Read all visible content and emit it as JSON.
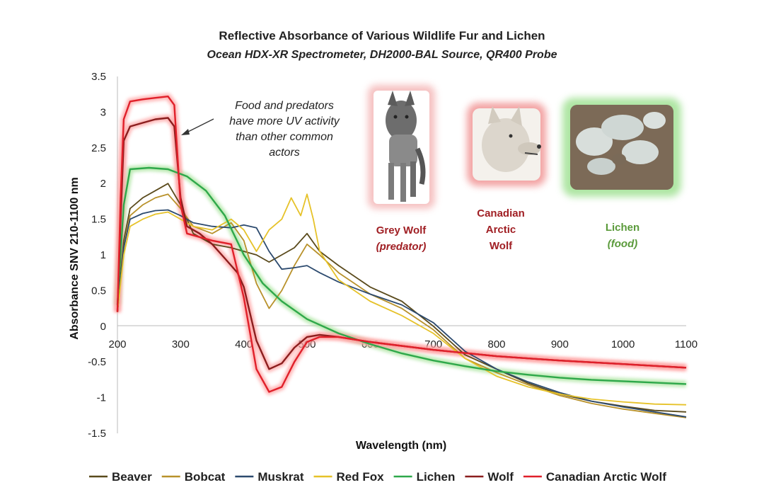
{
  "chart_data": {
    "type": "line",
    "title": "Reflective Absorbance of Various Wildlife Fur and Lichen",
    "subtitle": "Ocean HDX-XR Spectrometer, DH2000-BAL Source, QR400 Probe",
    "xlabel": "Wavelength (nm)",
    "ylabel": "Absorbance SNV 210-1100 nm",
    "xlim": [
      200,
      1100
    ],
    "ylim": [
      -1.5,
      3.5
    ],
    "xticks": [
      "200",
      "300",
      "400",
      "500",
      "600",
      "700",
      "800",
      "900",
      "1000",
      "1100"
    ],
    "yticks": [
      "3.5",
      "3",
      "2.5",
      "2",
      "1.5",
      "1",
      "0.5",
      "0",
      "-0.5",
      "-1",
      "-1.5"
    ],
    "grid": false,
    "legend_position": "bottom",
    "series": [
      {
        "name": "Beaver",
        "color": "#5a4a1c",
        "highlight": false,
        "points": [
          [
            200,
            0.2
          ],
          [
            210,
            1.2
          ],
          [
            220,
            1.65
          ],
          [
            240,
            1.8
          ],
          [
            260,
            1.9
          ],
          [
            280,
            2.0
          ],
          [
            300,
            1.7
          ],
          [
            320,
            1.3
          ],
          [
            350,
            1.15
          ],
          [
            380,
            1.1
          ],
          [
            400,
            1.05
          ],
          [
            420,
            1.0
          ],
          [
            440,
            0.9
          ],
          [
            460,
            1.0
          ],
          [
            480,
            1.1
          ],
          [
            500,
            1.3
          ],
          [
            520,
            1.05
          ],
          [
            550,
            0.85
          ],
          [
            600,
            0.55
          ],
          [
            650,
            0.35
          ],
          [
            700,
            0.0
          ],
          [
            750,
            -0.4
          ],
          [
            800,
            -0.6
          ],
          [
            850,
            -0.8
          ],
          [
            900,
            -0.95
          ],
          [
            950,
            -1.05
          ],
          [
            1000,
            -1.12
          ],
          [
            1050,
            -1.18
          ],
          [
            1100,
            -1.2
          ]
        ]
      },
      {
        "name": "Bobcat",
        "color": "#b8912a",
        "highlight": false,
        "points": [
          [
            200,
            0.2
          ],
          [
            210,
            1.1
          ],
          [
            220,
            1.55
          ],
          [
            240,
            1.7
          ],
          [
            260,
            1.8
          ],
          [
            280,
            1.85
          ],
          [
            300,
            1.65
          ],
          [
            320,
            1.4
          ],
          [
            350,
            1.3
          ],
          [
            380,
            1.45
          ],
          [
            400,
            1.2
          ],
          [
            420,
            0.6
          ],
          [
            440,
            0.25
          ],
          [
            460,
            0.5
          ],
          [
            480,
            0.85
          ],
          [
            500,
            1.15
          ],
          [
            520,
            1.0
          ],
          [
            550,
            0.75
          ],
          [
            600,
            0.45
          ],
          [
            650,
            0.25
          ],
          [
            700,
            -0.05
          ],
          [
            750,
            -0.45
          ],
          [
            800,
            -0.65
          ],
          [
            850,
            -0.82
          ],
          [
            900,
            -0.97
          ],
          [
            950,
            -1.08
          ],
          [
            1000,
            -1.16
          ],
          [
            1050,
            -1.22
          ],
          [
            1100,
            -1.28
          ]
        ]
      },
      {
        "name": "Muskrat",
        "color": "#2c4a6e",
        "highlight": false,
        "points": [
          [
            200,
            0.2
          ],
          [
            210,
            1.1
          ],
          [
            220,
            1.5
          ],
          [
            240,
            1.58
          ],
          [
            260,
            1.62
          ],
          [
            280,
            1.63
          ],
          [
            300,
            1.55
          ],
          [
            320,
            1.45
          ],
          [
            350,
            1.4
          ],
          [
            380,
            1.38
          ],
          [
            400,
            1.42
          ],
          [
            420,
            1.38
          ],
          [
            440,
            1.05
          ],
          [
            460,
            0.8
          ],
          [
            480,
            0.82
          ],
          [
            500,
            0.85
          ],
          [
            520,
            0.75
          ],
          [
            550,
            0.62
          ],
          [
            600,
            0.45
          ],
          [
            650,
            0.3
          ],
          [
            700,
            0.05
          ],
          [
            750,
            -0.35
          ],
          [
            800,
            -0.6
          ],
          [
            850,
            -0.78
          ],
          [
            900,
            -0.93
          ],
          [
            950,
            -1.05
          ],
          [
            1000,
            -1.13
          ],
          [
            1050,
            -1.2
          ],
          [
            1100,
            -1.27
          ]
        ]
      },
      {
        "name": "Red Fox",
        "color": "#e6c229",
        "highlight": false,
        "points": [
          [
            200,
            0.2
          ],
          [
            210,
            1.0
          ],
          [
            220,
            1.4
          ],
          [
            240,
            1.5
          ],
          [
            260,
            1.57
          ],
          [
            280,
            1.6
          ],
          [
            300,
            1.5
          ],
          [
            320,
            1.4
          ],
          [
            350,
            1.35
          ],
          [
            380,
            1.5
          ],
          [
            400,
            1.35
          ],
          [
            420,
            1.05
          ],
          [
            440,
            1.35
          ],
          [
            460,
            1.5
          ],
          [
            475,
            1.8
          ],
          [
            490,
            1.55
          ],
          [
            500,
            1.85
          ],
          [
            510,
            1.5
          ],
          [
            520,
            1.05
          ],
          [
            550,
            0.65
          ],
          [
            600,
            0.35
          ],
          [
            650,
            0.15
          ],
          [
            700,
            -0.1
          ],
          [
            750,
            -0.45
          ],
          [
            800,
            -0.7
          ],
          [
            850,
            -0.85
          ],
          [
            900,
            -0.95
          ],
          [
            950,
            -1.02
          ],
          [
            1000,
            -1.06
          ],
          [
            1050,
            -1.09
          ],
          [
            1100,
            -1.1
          ]
        ]
      },
      {
        "name": "Lichen",
        "color": "#2ea84a",
        "highlight": true,
        "glow": "#a6e39a",
        "points": [
          [
            200,
            0.3
          ],
          [
            210,
            1.7
          ],
          [
            220,
            2.2
          ],
          [
            250,
            2.22
          ],
          [
            280,
            2.2
          ],
          [
            310,
            2.1
          ],
          [
            340,
            1.9
          ],
          [
            370,
            1.55
          ],
          [
            400,
            1.0
          ],
          [
            430,
            0.6
          ],
          [
            460,
            0.35
          ],
          [
            500,
            0.1
          ],
          [
            550,
            -0.1
          ],
          [
            600,
            -0.25
          ],
          [
            650,
            -0.38
          ],
          [
            700,
            -0.48
          ],
          [
            750,
            -0.56
          ],
          [
            800,
            -0.63
          ],
          [
            850,
            -0.68
          ],
          [
            900,
            -0.72
          ],
          [
            950,
            -0.75
          ],
          [
            1000,
            -0.77
          ],
          [
            1050,
            -0.79
          ],
          [
            1100,
            -0.81
          ]
        ]
      },
      {
        "name": "Wolf",
        "color": "#8b1e1e",
        "highlight": true,
        "glow": "#ff9f9f",
        "points": [
          [
            200,
            0.2
          ],
          [
            205,
            1.5
          ],
          [
            210,
            2.6
          ],
          [
            220,
            2.8
          ],
          [
            240,
            2.85
          ],
          [
            260,
            2.9
          ],
          [
            280,
            2.92
          ],
          [
            290,
            2.8
          ],
          [
            300,
            1.8
          ],
          [
            310,
            1.4
          ],
          [
            330,
            1.3
          ],
          [
            350,
            1.15
          ],
          [
            370,
            0.95
          ],
          [
            390,
            0.75
          ],
          [
            400,
            0.55
          ],
          [
            420,
            -0.2
          ],
          [
            440,
            -0.6
          ],
          [
            460,
            -0.52
          ],
          [
            480,
            -0.3
          ],
          [
            500,
            -0.15
          ],
          [
            520,
            -0.12
          ],
          [
            550,
            -0.15
          ],
          [
            600,
            -0.22
          ],
          [
            700,
            -0.33
          ],
          [
            800,
            -0.42
          ],
          [
            900,
            -0.48
          ],
          [
            1000,
            -0.53
          ],
          [
            1100,
            -0.58
          ]
        ]
      },
      {
        "name": "Canadian Arctic Wolf",
        "color": "#e0202a",
        "highlight": true,
        "glow": "#ff9f9f",
        "points": [
          [
            200,
            0.2
          ],
          [
            205,
            1.8
          ],
          [
            210,
            2.9
          ],
          [
            220,
            3.15
          ],
          [
            240,
            3.18
          ],
          [
            260,
            3.2
          ],
          [
            280,
            3.22
          ],
          [
            290,
            3.1
          ],
          [
            300,
            1.7
          ],
          [
            310,
            1.3
          ],
          [
            330,
            1.25
          ],
          [
            350,
            1.2
          ],
          [
            380,
            1.15
          ],
          [
            400,
            0.4
          ],
          [
            420,
            -0.6
          ],
          [
            440,
            -0.92
          ],
          [
            460,
            -0.85
          ],
          [
            480,
            -0.5
          ],
          [
            500,
            -0.22
          ],
          [
            520,
            -0.15
          ],
          [
            550,
            -0.15
          ],
          [
            600,
            -0.22
          ],
          [
            700,
            -0.33
          ],
          [
            800,
            -0.42
          ],
          [
            900,
            -0.48
          ],
          [
            1000,
            -0.53
          ],
          [
            1100,
            -0.58
          ]
        ]
      }
    ],
    "annotation": [
      "Food and predators",
      "have more UV activity",
      "than other common",
      "actors"
    ],
    "image_labels": [
      {
        "lines": [
          "Grey Wolf",
          "(predator)"
        ],
        "color": "#a01f24"
      },
      {
        "lines": [
          "Canadian",
          "Arctic",
          "Wolf"
        ],
        "color": "#a01f24"
      },
      {
        "lines": [
          "Lichen",
          "(food)"
        ],
        "color": "#5a9a3a"
      }
    ]
  }
}
